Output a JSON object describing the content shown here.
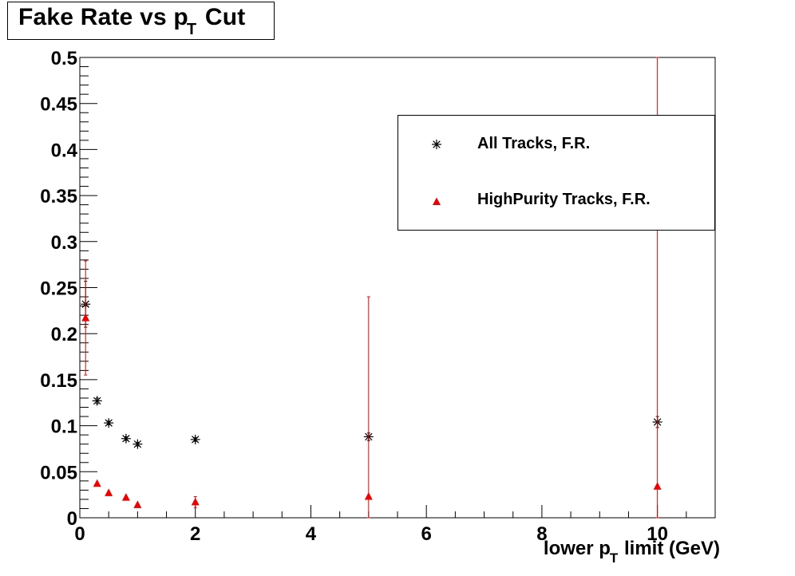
{
  "chart_data": {
    "type": "scatter",
    "title": {
      "main": "Fake Rate vs p",
      "sub": "T",
      "tail": " Cut"
    },
    "xlabel": {
      "main": "lower p",
      "sub": "T",
      "tail": " limit (GeV)"
    },
    "ylabel": "",
    "xlim": [
      0,
      11
    ],
    "ylim": [
      0,
      0.5
    ],
    "xticks": [
      {
        "v": 0,
        "label": "0"
      },
      {
        "v": 2,
        "label": "2"
      },
      {
        "v": 4,
        "label": "4"
      },
      {
        "v": 6,
        "label": "6"
      },
      {
        "v": 8,
        "label": "8"
      },
      {
        "v": 10,
        "label": "10"
      }
    ],
    "yticks": [
      {
        "v": 0,
        "label": "0"
      },
      {
        "v": 0.05,
        "label": "0.05"
      },
      {
        "v": 0.1,
        "label": "0.1"
      },
      {
        "v": 0.15,
        "label": "0.15"
      },
      {
        "v": 0.2,
        "label": "0.2"
      },
      {
        "v": 0.25,
        "label": "0.25"
      },
      {
        "v": 0.3,
        "label": "0.3"
      },
      {
        "v": 0.35,
        "label": "0.35"
      },
      {
        "v": 0.4,
        "label": "0.4"
      },
      {
        "v": 0.45,
        "label": "0.45"
      },
      {
        "v": 0.5,
        "label": "0.5"
      }
    ],
    "legend_position": "top-right",
    "series": [
      {
        "name": "All Tracks, F.R.",
        "color": "#000000",
        "marker": "asterisk",
        "points": [
          {
            "x": 0.1,
            "y": 0.232,
            "err": 0.025
          },
          {
            "x": 0.3,
            "y": 0.127,
            "err": 0.003
          },
          {
            "x": 0.5,
            "y": 0.103,
            "err": 0.002
          },
          {
            "x": 0.8,
            "y": 0.086,
            "err": 0.002
          },
          {
            "x": 1.0,
            "y": 0.08,
            "err": 0.002
          },
          {
            "x": 2.0,
            "y": 0.085,
            "err": 0.002
          },
          {
            "x": 5.0,
            "y": 0.088,
            "err": 0.004
          },
          {
            "x": 10.0,
            "y": 0.104,
            "err": 0.006
          }
        ]
      },
      {
        "name": "HighPurity Tracks, F.R.",
        "color": "#ee0000",
        "marker": "triangle",
        "points": [
          {
            "x": 0.1,
            "y": 0.217,
            "err": 0.062
          },
          {
            "x": 0.3,
            "y": 0.037,
            "err": 0.0
          },
          {
            "x": 0.5,
            "y": 0.027,
            "err": 0.0
          },
          {
            "x": 0.8,
            "y": 0.022,
            "err": 0.0
          },
          {
            "x": 1.0,
            "y": 0.014,
            "err": 0.0
          },
          {
            "x": 2.0,
            "y": 0.017,
            "err": 0.006
          },
          {
            "x": 5.0,
            "y": 0.023,
            "err": 0.217
          },
          {
            "x": 10.0,
            "y": 0.034,
            "err": 0.466
          }
        ]
      }
    ]
  }
}
